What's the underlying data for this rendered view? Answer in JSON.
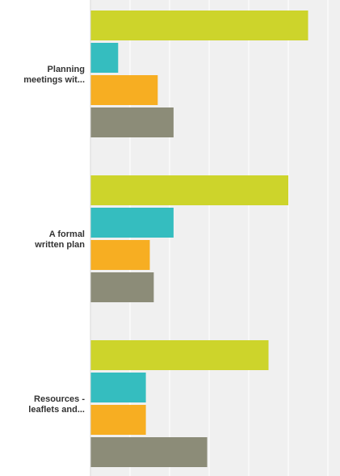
{
  "chart_data": {
    "type": "bar",
    "orientation": "horizontal",
    "title": "",
    "xlabel": "",
    "ylabel": "",
    "grid": true,
    "categories": [
      [
        "Planning",
        "meetings wit..."
      ],
      [
        "A formal",
        "written plan"
      ],
      [
        "Resources -",
        "leaflets and..."
      ]
    ],
    "xlim": [
      0,
      100
    ],
    "series": [
      {
        "color": "#cdd42b",
        "values": [
          55,
          50,
          45
        ]
      },
      {
        "color": "#35bdbf",
        "values": [
          7,
          21,
          14
        ]
      },
      {
        "color": "#f7ae22",
        "values": [
          17,
          15,
          14
        ]
      },
      {
        "color": "#8c8c78",
        "values": [
          21,
          16,
          29.5
        ]
      }
    ],
    "plot_background": "#f0f0f0",
    "gridline_color": "#ffffff"
  }
}
